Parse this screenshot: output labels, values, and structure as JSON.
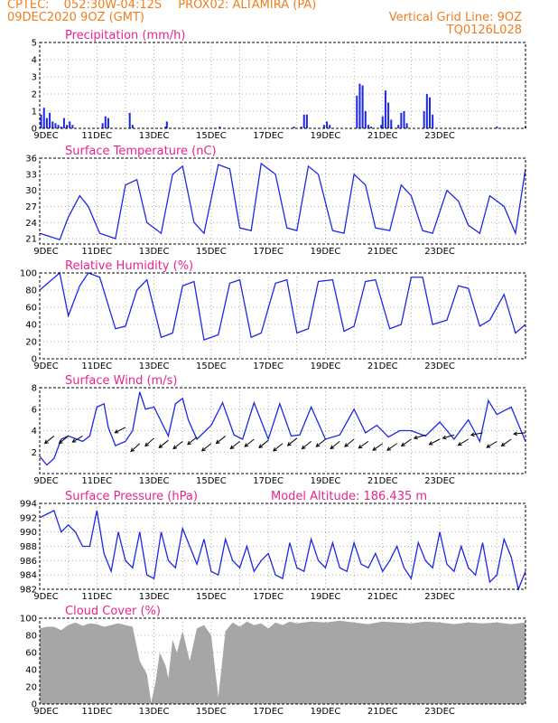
{
  "header": {
    "source": "CPTEC:",
    "coords": "052:30W-04:12S",
    "station": "PROX02: ALTAMIRA (PA)",
    "date": "09DEC2020 9OZ (GMT)",
    "gridline": "Vertical Grid Line: 9OZ",
    "model": "TQ0126L028"
  },
  "colors": {
    "header": "#f07e1e",
    "title": "#e8248c",
    "series": "#1c28e6",
    "cloud": "#a6a6a6"
  },
  "chart_data": [
    {
      "type": "bar",
      "title": "Precipitation (mm/h)",
      "ylim": [
        0,
        5
      ],
      "yticks": [
        "0",
        "1",
        "2",
        "3",
        "4",
        "5"
      ],
      "xticks": [
        "9DEC",
        "11DEC",
        "13DEC",
        "15DEC",
        "17DEC",
        "19DEC",
        "21DEC",
        "23DEC"
      ],
      "x": [
        0.1,
        0.3,
        0.5,
        0.7,
        0.9,
        1.1,
        1.3,
        1.5,
        1.7,
        1.9,
        2.1,
        2.3,
        4.4,
        4.6,
        4.8,
        6.3,
        6.5,
        8.8,
        8.9,
        12.6,
        17.8,
        18.3,
        18.5,
        18.7,
        19.9,
        20.1,
        20.3,
        22.2,
        22.4,
        22.6,
        22.8,
        23.0,
        23.2,
        23.9,
        24.0,
        24.2,
        24.4,
        24.6,
        25.1,
        25.3,
        25.5,
        25.7,
        26.9,
        27.1,
        27.3,
        27.5,
        32.0,
        34.0
      ],
      "values": [
        0.8,
        1.2,
        0.6,
        0.9,
        0.4,
        0.3,
        0.2,
        0.1,
        0.6,
        0.2,
        0.4,
        0.2,
        0.3,
        0.7,
        0.6,
        0.9,
        0.2,
        0.1,
        0.4,
        0.1,
        0.1,
        0.1,
        0.8,
        0.8,
        0.2,
        0.4,
        0.2,
        1.9,
        2.6,
        2.5,
        1.0,
        0.2,
        0.1,
        0.2,
        0.7,
        2.2,
        1.5,
        0.5,
        0.2,
        0.9,
        1.0,
        0.3,
        1.0,
        2.0,
        1.8,
        0.8,
        0.1,
        0.1
      ]
    },
    {
      "type": "line",
      "title": "Surface Temperature (nC)",
      "ylim": [
        20,
        36
      ],
      "yticks": [
        "21",
        "24",
        "27",
        "30",
        "33",
        "36"
      ],
      "xticks": [
        "9DEC",
        "11DEC",
        "13DEC",
        "15DEC",
        "17DEC",
        "19DEC",
        "21DEC",
        "23DEC"
      ],
      "x": [
        0,
        1.4,
        2.0,
        2.8,
        3.4,
        4.2,
        5.3,
        6.0,
        6.8,
        7.5,
        8.5,
        9.3,
        10.0,
        10.8,
        11.5,
        12.5,
        13.3,
        14.0,
        14.8,
        15.5,
        16.5,
        17.3,
        18.0,
        18.8,
        19.5,
        20.5,
        21.3,
        22.0,
        22.8,
        23.5,
        24.5,
        25.3,
        26.0,
        26.8,
        27.5,
        28.5,
        29.3,
        30.0,
        30.8,
        31.5,
        32.5,
        33.3,
        34.0
      ],
      "values": [
        22,
        20.8,
        25,
        29,
        27,
        22,
        21,
        31,
        32,
        24,
        22,
        33,
        34.5,
        24,
        22,
        34.8,
        34,
        23,
        22.5,
        35,
        33,
        23,
        22.5,
        34.5,
        33,
        22.5,
        22,
        33,
        31,
        23,
        22.5,
        31,
        29,
        22.5,
        22,
        30,
        28,
        23.5,
        22,
        29,
        27,
        22,
        34
      ]
    },
    {
      "type": "line",
      "title": "Relative Humidity (%)",
      "ylim": [
        0,
        100
      ],
      "yticks": [
        "0",
        "20",
        "40",
        "60",
        "80",
        "100"
      ],
      "xticks": [
        "9DEC",
        "11DEC",
        "13DEC",
        "15DEC",
        "17DEC",
        "19DEC",
        "21DEC",
        "23DEC"
      ],
      "x": [
        0,
        1.4,
        2.0,
        2.8,
        3.4,
        4.2,
        5.3,
        6.0,
        6.8,
        7.5,
        8.5,
        9.3,
        10.0,
        10.8,
        11.5,
        12.5,
        13.3,
        14.0,
        14.8,
        15.5,
        16.5,
        17.3,
        18.0,
        18.8,
        19.5,
        20.5,
        21.3,
        22.0,
        22.8,
        23.5,
        24.5,
        25.3,
        26.0,
        26.8,
        27.5,
        28.5,
        29.3,
        30.0,
        30.8,
        31.5,
        32.5,
        33.3,
        34.0
      ],
      "values": [
        80,
        100,
        50,
        85,
        100,
        95,
        35,
        38,
        80,
        92,
        25,
        30,
        85,
        90,
        22,
        28,
        88,
        92,
        25,
        30,
        88,
        92,
        30,
        35,
        90,
        92,
        32,
        38,
        90,
        92,
        35,
        40,
        95,
        95,
        40,
        45,
        85,
        82,
        38,
        45,
        75,
        30,
        40
      ]
    },
    {
      "type": "line",
      "title": "Surface Wind (m/s)",
      "ylim": [
        0,
        8
      ],
      "yticks": [
        "2",
        "4",
        "6",
        "8"
      ],
      "xticks": [
        "9DEC",
        "11DEC",
        "13DEC",
        "15DEC",
        "17DEC",
        "19DEC",
        "21DEC",
        "23DEC"
      ],
      "x": [
        0,
        0.5,
        1.0,
        1.5,
        2.0,
        3.0,
        3.5,
        4.0,
        4.5,
        4.8,
        5.3,
        6.0,
        6.5,
        7.0,
        7.4,
        8.0,
        9.0,
        9.5,
        10.0,
        10.4,
        11.0,
        12.0,
        12.8,
        13.6,
        14.2,
        15.0,
        16.0,
        16.8,
        17.6,
        18.2,
        19.0,
        20.0,
        21.0,
        22.0,
        22.8,
        23.6,
        24.4,
        25.2,
        26.0,
        27.0,
        28.0,
        29.0,
        30.0,
        30.8,
        31.4,
        32.0,
        33.0,
        34.0
      ],
      "values": [
        1.6,
        0.8,
        1.4,
        3.2,
        3.5,
        3.0,
        3.5,
        6.2,
        6.5,
        4.3,
        2.6,
        3.0,
        4.0,
        7.6,
        6.0,
        6.2,
        3.5,
        6.5,
        7.0,
        5.0,
        3.2,
        4.5,
        6.6,
        3.6,
        3.2,
        6.6,
        3.2,
        6.5,
        3.5,
        3.6,
        6.2,
        3.2,
        3.6,
        6.0,
        3.8,
        4.5,
        3.4,
        4.0,
        4.0,
        3.5,
        4.8,
        3.2,
        5.0,
        3.0,
        6.8,
        5.5,
        6.2,
        3.0
      ],
      "arrows": {
        "x": [
          1.0,
          2.0,
          3.0,
          6.0,
          7.0,
          8.0,
          9.0,
          10.0,
          11.0,
          12.0,
          13.0,
          14.0,
          15.0,
          16.0,
          17.0,
          18.0,
          19.0,
          20.0,
          21.0,
          22.0,
          23.0,
          24.0,
          25.0,
          26.0,
          27.0,
          28.0,
          29.0,
          30.0,
          31.0,
          32.0,
          33.0,
          34.0
        ],
        "y": [
          3.5,
          3.5,
          3.5,
          4.3,
          2.8,
          3.3,
          3.1,
          3.0,
          3.4,
          2.8,
          3.5,
          3.0,
          3.2,
          3.1,
          2.8,
          3.3,
          3.0,
          3.2,
          3.0,
          3.2,
          3.0,
          2.8,
          2.8,
          3.2,
          3.6,
          3.2,
          3.6,
          3.2,
          3.8,
          3.0,
          3.2,
          3.8
        ],
        "dx": [
          -1,
          -1,
          -1,
          -0.6,
          -1,
          -1,
          -1,
          -1,
          -1,
          -1,
          -1,
          -1,
          -1,
          -1,
          -1,
          -1,
          -1,
          -1,
          -1,
          -1,
          -1,
          -1,
          -1,
          -1,
          -1,
          -1,
          -1,
          -1,
          -1,
          -1,
          -1,
          -1
        ],
        "dy": [
          -0.8,
          -0.8,
          -0.6,
          -0.3,
          -0.9,
          -0.9,
          -0.8,
          -0.8,
          -0.8,
          -0.8,
          -0.8,
          -0.8,
          -0.8,
          -0.8,
          -0.8,
          -0.8,
          -0.8,
          -0.8,
          -0.8,
          -0.8,
          -0.7,
          -0.7,
          -0.7,
          -0.7,
          -0.3,
          -0.5,
          -0.3,
          -0.6,
          -0.2,
          -0.6,
          -0.7,
          -0.1
        ]
      }
    },
    {
      "type": "line",
      "title": "Surface Pressure (hPa)",
      "annotation": "Model Altitude: 186.435 m",
      "ylim": [
        982,
        994
      ],
      "yticks": [
        "982",
        "984",
        "986",
        "988",
        "990",
        "992",
        "994"
      ],
      "xticks": [
        "9DEC",
        "11DEC",
        "13DEC",
        "15DEC",
        "17DEC",
        "19DEC",
        "21DEC",
        "23DEC"
      ],
      "x": [
        0,
        0.5,
        1.0,
        1.5,
        2.0,
        2.5,
        3.0,
        3.5,
        4.0,
        4.5,
        5.0,
        5.5,
        6.0,
        6.5,
        7.0,
        7.5,
        8.0,
        8.5,
        9.0,
        9.5,
        10.0,
        10.5,
        11.0,
        11.5,
        12.0,
        12.5,
        13.0,
        13.5,
        14.0,
        14.5,
        15.0,
        15.5,
        16.0,
        16.5,
        17.0,
        17.5,
        18.0,
        18.5,
        19.0,
        19.5,
        20.0,
        20.5,
        21.0,
        21.5,
        22.0,
        22.5,
        23.0,
        23.5,
        24.0,
        24.5,
        25.0,
        25.5,
        26.0,
        26.5,
        27.0,
        27.5,
        28.0,
        28.5,
        29.0,
        29.5,
        30.0,
        30.5,
        31.0,
        31.5,
        32.0,
        32.5,
        33.0,
        33.5,
        34.0
      ],
      "values": [
        992,
        992.5,
        993,
        990,
        991,
        990,
        988,
        988,
        993,
        987,
        984.5,
        990,
        986,
        985,
        990,
        984,
        983.5,
        990,
        986,
        985,
        990.5,
        988,
        985.5,
        989,
        984.5,
        984,
        989,
        986,
        985,
        988,
        984.5,
        986,
        987,
        984,
        983.5,
        988.5,
        985,
        984.5,
        989,
        986,
        985,
        988.5,
        985,
        984.5,
        988.5,
        985.5,
        985,
        987,
        984.5,
        986,
        988,
        985,
        983.5,
        988.5,
        986,
        985,
        990,
        985.5,
        984.5,
        988,
        985,
        984,
        988.5,
        983,
        984,
        989,
        986.5,
        982,
        984.5
      ]
    },
    {
      "type": "area",
      "title": "Cloud Cover (%)",
      "ylim": [
        0,
        100
      ],
      "yticks": [
        "0",
        "20",
        "40",
        "60",
        "80",
        "100"
      ],
      "xticks": [
        "9DEC",
        "11DEC",
        "13DEC",
        "15DEC",
        "17DEC",
        "19DEC",
        "21DEC",
        "23DEC"
      ],
      "x": [
        0,
        0.5,
        1.0,
        1.5,
        2.0,
        2.5,
        3.0,
        3.5,
        4.0,
        4.5,
        5.0,
        5.5,
        6.0,
        6.5,
        7.0,
        7.5,
        7.8,
        8.1,
        8.4,
        8.8,
        9.0,
        9.3,
        9.6,
        10.0,
        10.5,
        11.0,
        11.5,
        12.0,
        12.5,
        13.0,
        13.5,
        14.0,
        14.5,
        15.0,
        15.5,
        16.0,
        16.5,
        17.0,
        17.5,
        18.0,
        19.0,
        20.0,
        21.0,
        22.0,
        23.0,
        24.0,
        25.0,
        26.0,
        27.0,
        28.0,
        29.0,
        30.0,
        31.0,
        32.0,
        33.0,
        34.0
      ],
      "values": [
        88,
        90,
        90,
        86,
        92,
        95,
        91,
        94,
        93,
        90,
        92,
        94,
        92,
        90,
        50,
        35,
        2,
        25,
        60,
        45,
        30,
        75,
        60,
        85,
        50,
        88,
        92,
        80,
        8,
        85,
        95,
        90,
        96,
        92,
        94,
        88,
        95,
        92,
        96,
        94,
        96,
        95,
        97,
        95,
        93,
        96,
        95,
        94,
        96,
        95,
        93,
        95,
        94,
        95,
        93,
        95
      ]
    }
  ]
}
